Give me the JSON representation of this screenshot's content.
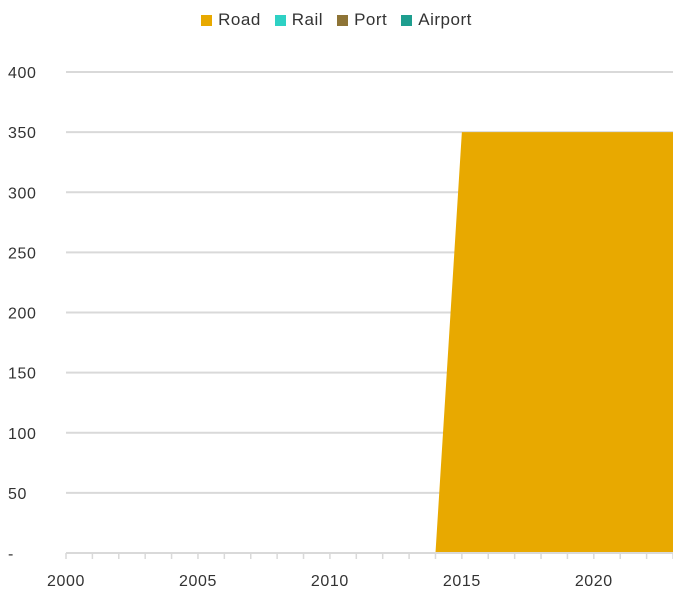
{
  "chart_data": {
    "type": "area",
    "title": "",
    "xlabel": "",
    "ylabel": "",
    "x": [
      2000,
      2001,
      2002,
      2003,
      2004,
      2005,
      2006,
      2007,
      2008,
      2009,
      2010,
      2011,
      2012,
      2013,
      2014,
      2015,
      2016,
      2017,
      2018,
      2019,
      2020,
      2021,
      2022,
      2023
    ],
    "series": [
      {
        "name": "Road",
        "color": "#E8A900",
        "values": [
          0,
          0,
          0,
          0,
          0,
          0,
          0,
          0,
          0,
          0,
          0,
          0,
          0,
          0,
          0,
          350,
          350,
          350,
          350,
          350,
          350,
          350,
          350,
          350
        ]
      },
      {
        "name": "Rail",
        "color": "#2ED1C4",
        "values": [
          0,
          0,
          0,
          0,
          0,
          0,
          0,
          0,
          0,
          0,
          0,
          0,
          0,
          0,
          0,
          0,
          0,
          0,
          0,
          0,
          0,
          0,
          0,
          0
        ]
      },
      {
        "name": "Port",
        "color": "#8E7436",
        "values": [
          0,
          0,
          0,
          0,
          0,
          0,
          0,
          0,
          0,
          0,
          0,
          0,
          0,
          0,
          0,
          0,
          0,
          0,
          0,
          0,
          0,
          0,
          0,
          0
        ]
      },
      {
        "name": "Airport",
        "color": "#1E9E8F",
        "values": [
          0,
          0,
          0,
          0,
          0,
          0,
          0,
          0,
          0,
          0,
          0,
          0,
          0,
          0,
          0,
          0,
          0,
          0,
          0,
          0,
          0,
          0,
          0,
          0
        ]
      }
    ],
    "ylim": [
      0,
      400
    ],
    "yticks": [
      0,
      50,
      100,
      150,
      200,
      250,
      300,
      350,
      400
    ],
    "ytick_labels": [
      "-",
      "50",
      "100",
      "150",
      "200",
      "250",
      "300",
      "350",
      "400"
    ],
    "xticks_labeled": [
      2000,
      2005,
      2010,
      2015,
      2020
    ],
    "xtick_labels": [
      "2000",
      "2005",
      "2010",
      "2015",
      "2020"
    ],
    "grid": "horizontal",
    "legend_position": "top-center"
  }
}
